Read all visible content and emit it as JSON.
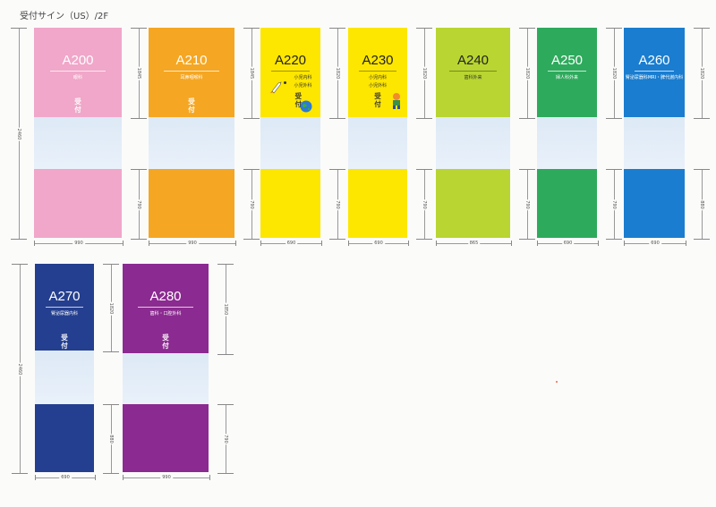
{
  "page": {
    "title": "受付サイン（US）/2F"
  },
  "signs": [
    {
      "code": "A200",
      "dept": "眼科",
      "reception": "受付",
      "color": "#f0a7c9",
      "text": "light",
      "dims": {
        "total": "2460",
        "top": "1845",
        "bottom": "790",
        "width": "990"
      }
    },
    {
      "code": "A210",
      "dept": "耳鼻咽喉科",
      "reception": "受付",
      "color": "#f5a623",
      "text": "light",
      "dims": {
        "top": "1845",
        "bottom": "790",
        "width": "990"
      }
    },
    {
      "code": "A220",
      "dept": "小児内科",
      "dept2": "小児外科",
      "reception": "受付",
      "color": "#fde600",
      "text": "dark",
      "dims": {
        "top": "1820",
        "bottom": "790",
        "width": "690"
      }
    },
    {
      "code": "A230",
      "dept": "小児内科",
      "dept2": "小児外科",
      "reception": "受付",
      "color": "#fde600",
      "text": "dark",
      "dims": {
        "top": "1820",
        "bottom": "790",
        "width": "690"
      }
    },
    {
      "code": "A240",
      "dept": "歯科外来",
      "reception": "",
      "color": "#b8d531",
      "text": "dark",
      "dims": {
        "top": "1820",
        "bottom": "790",
        "width": "865"
      }
    },
    {
      "code": "A250",
      "dept": "婦人科外来",
      "reception": "",
      "color": "#2eaa5c",
      "text": "light",
      "dims": {
        "top": "1820",
        "bottom": "790",
        "width": "690"
      }
    },
    {
      "code": "A260",
      "dept": "腎泌尿器科MRI・脾代謝内科",
      "reception": "",
      "color": "#1a7dcf",
      "text": "light",
      "dims": {
        "top": "1820",
        "bottom": "880",
        "width": "690"
      }
    },
    {
      "code": "A270",
      "dept": "腎泌尿器内科",
      "reception": "受付",
      "color": "#243f8f",
      "text": "light",
      "dims": {
        "total": "2460",
        "top": "1820",
        "bottom": "880",
        "width": "690"
      }
    },
    {
      "code": "A280",
      "dept": "歯科・口腔外科",
      "reception": "受付",
      "color": "#8b2a90",
      "text": "light",
      "dims": {
        "top": "1850",
        "bottom": "790",
        "width": "990"
      }
    }
  ]
}
